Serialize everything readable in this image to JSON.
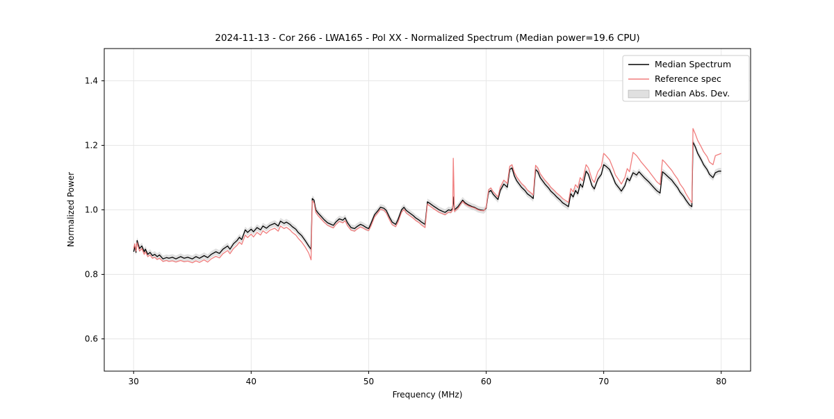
{
  "figure": {
    "background": "#ffffff"
  },
  "chart_data": {
    "type": "line",
    "title": "2024-11-13 - Cor 266 - LWA165 - Pol XX - Normalized Spectrum (Median power=19.6 CPU)",
    "xlabel": "Frequency (MHz)",
    "ylabel": "Normalized Power",
    "xlim": [
      27.5,
      82.5
    ],
    "ylim": [
      0.5,
      1.5
    ],
    "xticks": [
      30,
      40,
      50,
      60,
      70,
      80
    ],
    "yticks": [
      0.6,
      0.8,
      1.0,
      1.2,
      1.4
    ],
    "grid": true,
    "legend_position": "upper right",
    "series": [
      {
        "name": "Median Spectrum",
        "color": "#000000",
        "width": 1.3,
        "type": "line",
        "points_key": 1
      },
      {
        "name": "Reference spec",
        "color": "#f07d7d",
        "width": 1.3,
        "type": "line",
        "points_key": 2
      },
      {
        "name": "Median Abs. Dev.",
        "color": "#bbbbbb",
        "opacity": 0.45,
        "type": "band",
        "halfwidth": 0.01,
        "around_key": 1
      }
    ],
    "points_format": [
      "frequency_mhz",
      "median_spectrum",
      "reference_spec"
    ],
    "points": [
      [
        30.0,
        0.87,
        0.88
      ],
      [
        30.1,
        0.886,
        0.895
      ],
      [
        30.2,
        0.868,
        0.872
      ],
      [
        30.3,
        0.905,
        0.898
      ],
      [
        30.4,
        0.892,
        0.885
      ],
      [
        30.5,
        0.88,
        0.872
      ],
      [
        30.7,
        0.888,
        0.88
      ],
      [
        30.9,
        0.87,
        0.862
      ],
      [
        31.0,
        0.878,
        0.87
      ],
      [
        31.2,
        0.862,
        0.855
      ],
      [
        31.4,
        0.868,
        0.86
      ],
      [
        31.6,
        0.858,
        0.85
      ],
      [
        31.8,
        0.862,
        0.853
      ],
      [
        32.0,
        0.855,
        0.846
      ],
      [
        32.2,
        0.86,
        0.85
      ],
      [
        32.5,
        0.848,
        0.84
      ],
      [
        32.8,
        0.852,
        0.843
      ],
      [
        33.0,
        0.85,
        0.84
      ],
      [
        33.3,
        0.853,
        0.842
      ],
      [
        33.6,
        0.848,
        0.838
      ],
      [
        34.0,
        0.855,
        0.843
      ],
      [
        34.3,
        0.85,
        0.839
      ],
      [
        34.6,
        0.853,
        0.841
      ],
      [
        35.0,
        0.848,
        0.836
      ],
      [
        35.3,
        0.855,
        0.842
      ],
      [
        35.6,
        0.85,
        0.837
      ],
      [
        36.0,
        0.858,
        0.845
      ],
      [
        36.3,
        0.852,
        0.838
      ],
      [
        36.6,
        0.862,
        0.848
      ],
      [
        37.0,
        0.87,
        0.856
      ],
      [
        37.3,
        0.865,
        0.851
      ],
      [
        37.6,
        0.878,
        0.864
      ],
      [
        38.0,
        0.888,
        0.874
      ],
      [
        38.2,
        0.878,
        0.864
      ],
      [
        38.5,
        0.895,
        0.88
      ],
      [
        38.8,
        0.905,
        0.89
      ],
      [
        39.0,
        0.915,
        0.9
      ],
      [
        39.2,
        0.908,
        0.893
      ],
      [
        39.5,
        0.938,
        0.922
      ],
      [
        39.7,
        0.93,
        0.914
      ],
      [
        40.0,
        0.94,
        0.925
      ],
      [
        40.2,
        0.932,
        0.916
      ],
      [
        40.5,
        0.945,
        0.93
      ],
      [
        40.8,
        0.938,
        0.922
      ],
      [
        41.0,
        0.95,
        0.935
      ],
      [
        41.3,
        0.943,
        0.927
      ],
      [
        41.6,
        0.952,
        0.937
      ],
      [
        42.0,
        0.958,
        0.943
      ],
      [
        42.3,
        0.95,
        0.934
      ],
      [
        42.5,
        0.965,
        0.95
      ],
      [
        42.8,
        0.958,
        0.942
      ],
      [
        43.0,
        0.962,
        0.946
      ],
      [
        43.3,
        0.955,
        0.938
      ],
      [
        43.5,
        0.948,
        0.93
      ],
      [
        43.8,
        0.94,
        0.922
      ],
      [
        44.0,
        0.93,
        0.912
      ],
      [
        44.3,
        0.92,
        0.9
      ],
      [
        44.6,
        0.905,
        0.885
      ],
      [
        44.9,
        0.888,
        0.866
      ],
      [
        45.1,
        0.878,
        0.845
      ],
      [
        45.2,
        1.035,
        1.028
      ],
      [
        45.35,
        1.03,
        1.022
      ],
      [
        45.5,
        1.0,
        0.992
      ],
      [
        45.7,
        0.99,
        0.982
      ],
      [
        46.0,
        0.978,
        0.97
      ],
      [
        46.2,
        0.97,
        0.962
      ],
      [
        46.5,
        0.96,
        0.952
      ],
      [
        46.8,
        0.955,
        0.947
      ],
      [
        47.0,
        0.952,
        0.944
      ],
      [
        47.2,
        0.962,
        0.954
      ],
      [
        47.5,
        0.972,
        0.964
      ],
      [
        47.8,
        0.968,
        0.96
      ],
      [
        48.0,
        0.975,
        0.966
      ],
      [
        48.2,
        0.96,
        0.951
      ],
      [
        48.5,
        0.945,
        0.937
      ],
      [
        48.8,
        0.942,
        0.934
      ],
      [
        49.0,
        0.948,
        0.94
      ],
      [
        49.3,
        0.955,
        0.947
      ],
      [
        49.5,
        0.952,
        0.944
      ],
      [
        49.8,
        0.945,
        0.938
      ],
      [
        50.0,
        0.942,
        0.936
      ],
      [
        50.2,
        0.958,
        0.95
      ],
      [
        50.5,
        0.985,
        0.978
      ],
      [
        50.8,
        0.998,
        0.992
      ],
      [
        51.0,
        1.008,
        1.002
      ],
      [
        51.3,
        1.005,
        0.999
      ],
      [
        51.5,
        0.998,
        0.99
      ],
      [
        51.8,
        0.975,
        0.967
      ],
      [
        52.0,
        0.962,
        0.954
      ],
      [
        52.3,
        0.955,
        0.948
      ],
      [
        52.5,
        0.97,
        0.962
      ],
      [
        52.8,
        1.0,
        0.993
      ],
      [
        53.0,
        1.008,
        1.001
      ],
      [
        53.2,
        0.998,
        0.99
      ],
      [
        53.5,
        0.99,
        0.982
      ],
      [
        53.8,
        0.982,
        0.974
      ],
      [
        54.0,
        0.975,
        0.967
      ],
      [
        54.3,
        0.968,
        0.96
      ],
      [
        54.5,
        0.962,
        0.953
      ],
      [
        54.8,
        0.955,
        0.945
      ],
      [
        55.0,
        1.025,
        1.018
      ],
      [
        55.2,
        1.02,
        1.012
      ],
      [
        55.5,
        1.012,
        1.004
      ],
      [
        55.8,
        1.005,
        0.997
      ],
      [
        56.0,
        1.0,
        0.992
      ],
      [
        56.3,
        0.995,
        0.988
      ],
      [
        56.5,
        0.992,
        0.985
      ],
      [
        56.8,
        1.0,
        0.993
      ],
      [
        57.0,
        0.998,
        0.992
      ],
      [
        57.15,
        1.005,
        1.0
      ],
      [
        57.2,
        1.04,
        1.16
      ],
      [
        57.3,
        1.0,
        0.995
      ],
      [
        57.6,
        1.01,
        1.005
      ],
      [
        57.8,
        1.02,
        1.016
      ],
      [
        58.0,
        1.03,
        1.026
      ],
      [
        58.2,
        1.022,
        1.018
      ],
      [
        58.5,
        1.015,
        1.012
      ],
      [
        58.8,
        1.01,
        1.008
      ],
      [
        59.0,
        1.008,
        1.006
      ],
      [
        59.3,
        1.002,
        1.0
      ],
      [
        59.5,
        1.0,
        0.998
      ],
      [
        59.8,
        0.998,
        0.997
      ],
      [
        60.0,
        1.005,
        1.008
      ],
      [
        60.2,
        1.055,
        1.062
      ],
      [
        60.4,
        1.06,
        1.068
      ],
      [
        60.6,
        1.048,
        1.056
      ],
      [
        60.8,
        1.04,
        1.048
      ],
      [
        61.0,
        1.032,
        1.04
      ],
      [
        61.2,
        1.06,
        1.07
      ],
      [
        61.5,
        1.08,
        1.092
      ],
      [
        61.8,
        1.07,
        1.082
      ],
      [
        62.0,
        1.125,
        1.135
      ],
      [
        62.2,
        1.13,
        1.14
      ],
      [
        62.4,
        1.105,
        1.116
      ],
      [
        62.6,
        1.09,
        1.102
      ],
      [
        62.8,
        1.08,
        1.092
      ],
      [
        63.0,
        1.07,
        1.082
      ],
      [
        63.3,
        1.06,
        1.072
      ],
      [
        63.5,
        1.05,
        1.062
      ],
      [
        63.8,
        1.042,
        1.053
      ],
      [
        64.0,
        1.035,
        1.046
      ],
      [
        64.2,
        1.125,
        1.138
      ],
      [
        64.4,
        1.118,
        1.13
      ],
      [
        64.6,
        1.1,
        1.112
      ],
      [
        64.8,
        1.09,
        1.102
      ],
      [
        65.0,
        1.08,
        1.092
      ],
      [
        65.3,
        1.068,
        1.08
      ],
      [
        65.5,
        1.058,
        1.07
      ],
      [
        65.8,
        1.048,
        1.06
      ],
      [
        66.0,
        1.04,
        1.052
      ],
      [
        66.3,
        1.03,
        1.043
      ],
      [
        66.5,
        1.022,
        1.035
      ],
      [
        66.8,
        1.015,
        1.028
      ],
      [
        67.0,
        1.01,
        1.023
      ],
      [
        67.2,
        1.05,
        1.066
      ],
      [
        67.4,
        1.04,
        1.056
      ],
      [
        67.6,
        1.06,
        1.078
      ],
      [
        67.8,
        1.05,
        1.068
      ],
      [
        68.0,
        1.08,
        1.1
      ],
      [
        68.2,
        1.07,
        1.09
      ],
      [
        68.5,
        1.12,
        1.14
      ],
      [
        68.7,
        1.11,
        1.13
      ],
      [
        69.0,
        1.075,
        1.095
      ],
      [
        69.2,
        1.065,
        1.085
      ],
      [
        69.5,
        1.095,
        1.118
      ],
      [
        69.8,
        1.11,
        1.135
      ],
      [
        70.0,
        1.14,
        1.175
      ],
      [
        70.2,
        1.135,
        1.168
      ],
      [
        70.5,
        1.125,
        1.155
      ],
      [
        70.8,
        1.1,
        1.128
      ],
      [
        71.0,
        1.082,
        1.108
      ],
      [
        71.3,
        1.068,
        1.092
      ],
      [
        71.5,
        1.058,
        1.08
      ],
      [
        71.8,
        1.075,
        1.1
      ],
      [
        72.0,
        1.098,
        1.128
      ],
      [
        72.2,
        1.09,
        1.118
      ],
      [
        72.5,
        1.115,
        1.178
      ],
      [
        72.8,
        1.108,
        1.168
      ],
      [
        73.0,
        1.118,
        1.158
      ],
      [
        73.2,
        1.11,
        1.148
      ],
      [
        73.5,
        1.098,
        1.135
      ],
      [
        73.8,
        1.088,
        1.122
      ],
      [
        74.0,
        1.08,
        1.112
      ],
      [
        74.3,
        1.068,
        1.098
      ],
      [
        74.5,
        1.06,
        1.088
      ],
      [
        74.8,
        1.052,
        1.078
      ],
      [
        75.0,
        1.118,
        1.155
      ],
      [
        75.2,
        1.112,
        1.148
      ],
      [
        75.5,
        1.102,
        1.135
      ],
      [
        75.8,
        1.092,
        1.122
      ],
      [
        76.0,
        1.082,
        1.11
      ],
      [
        76.3,
        1.068,
        1.095
      ],
      [
        76.5,
        1.055,
        1.08
      ],
      [
        76.8,
        1.042,
        1.065
      ],
      [
        77.0,
        1.03,
        1.05
      ],
      [
        77.3,
        1.015,
        1.032
      ],
      [
        77.5,
        1.01,
        1.022
      ],
      [
        77.6,
        1.21,
        1.252
      ],
      [
        77.8,
        1.195,
        1.235
      ],
      [
        78.0,
        1.175,
        1.215
      ],
      [
        78.3,
        1.155,
        1.195
      ],
      [
        78.5,
        1.14,
        1.18
      ],
      [
        78.8,
        1.125,
        1.165
      ],
      [
        79.0,
        1.11,
        1.148
      ],
      [
        79.3,
        1.1,
        1.14
      ],
      [
        79.5,
        1.115,
        1.168
      ],
      [
        79.8,
        1.12,
        1.172
      ],
      [
        80.0,
        1.12,
        1.175
      ]
    ]
  },
  "legend": {
    "entries": [
      "Median Spectrum",
      "Reference spec",
      "Median Abs. Dev."
    ]
  }
}
